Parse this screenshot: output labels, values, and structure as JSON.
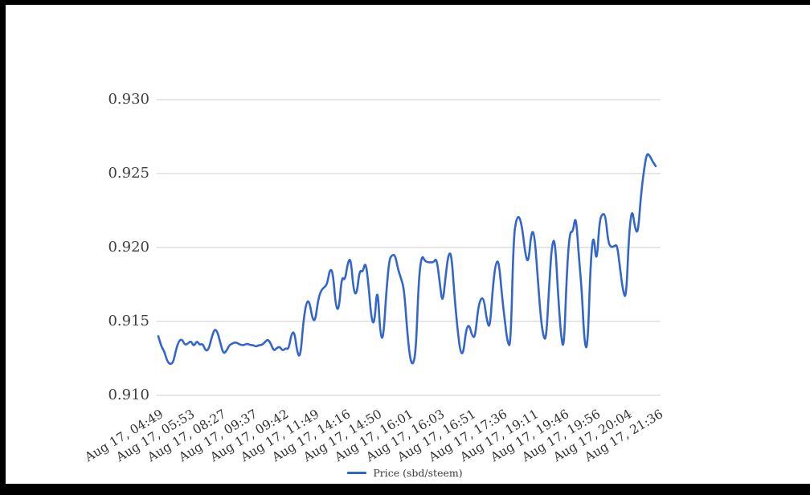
{
  "colors": {
    "line": "#3366cc",
    "gridline": "#cccccc",
    "axis_label": "#3e3e3e",
    "frame": "#000000",
    "background": "#ffffff"
  },
  "legend": {
    "label": "Price (sbd/steem)"
  },
  "chart_data": {
    "type": "line",
    "title": "",
    "xlabel": "",
    "ylabel": "",
    "grid": "horizontal-only",
    "legend_position": "bottom-center",
    "ylim": [
      0.91,
      0.93
    ],
    "y_ticks": [
      0.91,
      0.915,
      0.92,
      0.925,
      0.93
    ],
    "y_tick_labels": [
      "0.910",
      "0.915",
      "0.920",
      "0.925",
      "0.930"
    ],
    "x_tick_labels": [
      "Aug 17, 04:49",
      "Aug 17, 05:53",
      "Aug 17, 08:27",
      "Aug 17, 09:37",
      "Aug 17, 09:42",
      "Aug 17, 11:49",
      "Aug 17, 14:16",
      "Aug 17, 14:50",
      "Aug 17, 16:01",
      "Aug 17, 16:03",
      "Aug 17, 16:51",
      "Aug 17, 17:36",
      "Aug 17, 19:11",
      "Aug 17, 19:46",
      "Aug 17, 19:56",
      "Aug 17, 20:04",
      "Aug 17, 21:36"
    ],
    "series": [
      {
        "name": "Price (sbd/steem)",
        "color": "#3366cc",
        "values": [
          0.914,
          0.9133,
          0.913,
          0.9123,
          0.9121,
          0.9122,
          0.9131,
          0.9137,
          0.9138,
          0.9134,
          0.9135,
          0.9137,
          0.9133,
          0.9137,
          0.9134,
          0.9135,
          0.913,
          0.9131,
          0.9139,
          0.9145,
          0.9143,
          0.9135,
          0.9128,
          0.913,
          0.9134,
          0.9135,
          0.9136,
          0.9135,
          0.9134,
          0.9134,
          0.9135,
          0.9134,
          0.9134,
          0.9133,
          0.9134,
          0.9134,
          0.9136,
          0.9138,
          0.9135,
          0.913,
          0.9132,
          0.9133,
          0.913,
          0.9132,
          0.9131,
          0.9142,
          0.9143,
          0.9128,
          0.9126,
          0.915,
          0.9163,
          0.9164,
          0.9152,
          0.915,
          0.9165,
          0.9171,
          0.9173,
          0.9175,
          0.9186,
          0.9183,
          0.9159,
          0.9158,
          0.9181,
          0.9177,
          0.919,
          0.9193,
          0.917,
          0.9168,
          0.9185,
          0.9183,
          0.9191,
          0.9175,
          0.9151,
          0.9148,
          0.9176,
          0.914,
          0.9138,
          0.917,
          0.9192,
          0.9195,
          0.9195,
          0.9185,
          0.9179,
          0.9172,
          0.9145,
          0.9125,
          0.912,
          0.913,
          0.918,
          0.9195,
          0.9191,
          0.919,
          0.919,
          0.919,
          0.9193,
          0.9177,
          0.9161,
          0.918,
          0.9196,
          0.9196,
          0.9168,
          0.9146,
          0.9129,
          0.9128,
          0.9145,
          0.9148,
          0.914,
          0.9139,
          0.9159,
          0.9166,
          0.9165,
          0.915,
          0.9145,
          0.9174,
          0.919,
          0.9191,
          0.9169,
          0.9151,
          0.9135,
          0.9133,
          0.9207,
          0.922,
          0.9221,
          0.9212,
          0.9195,
          0.9189,
          0.9211,
          0.921,
          0.9184,
          0.9156,
          0.914,
          0.9137,
          0.9174,
          0.9204,
          0.9205,
          0.9169,
          0.914,
          0.913,
          0.9185,
          0.9211,
          0.921,
          0.9223,
          0.9195,
          0.9172,
          0.9133,
          0.9132,
          0.919,
          0.9211,
          0.9187,
          0.9218,
          0.9223,
          0.9222,
          0.9203,
          0.92,
          0.9201,
          0.9202,
          0.9185,
          0.917,
          0.9165,
          0.921,
          0.9227,
          0.9213,
          0.9209,
          0.9235,
          0.9252,
          0.9264,
          0.9262,
          0.9258,
          0.9255
        ]
      }
    ]
  }
}
